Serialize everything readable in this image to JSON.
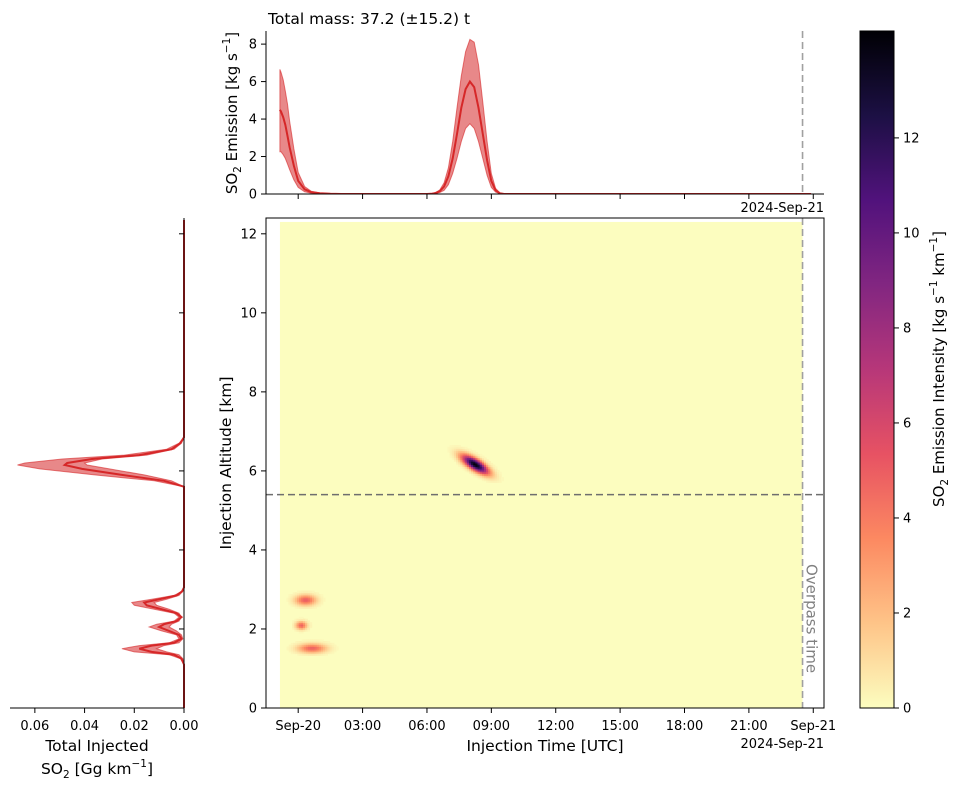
{
  "chart_data": [
    {
      "panel": "top",
      "type": "line",
      "title": "Total mass: 37.2 (±15.2) t",
      "ylabel": [
        "SO",
        "2",
        " Emission [kg s",
        "−1",
        "]"
      ],
      "ylim": [
        0,
        8.7
      ],
      "yticks": [
        0,
        2,
        4,
        6,
        8
      ],
      "x_date_label": "2024-Sep-21",
      "series": [
        {
          "band": true,
          "color": "#d62728",
          "x": [
            -0.85,
            -0.8,
            -0.7,
            -0.6,
            -0.5,
            -0.4,
            -0.2,
            0,
            0.3,
            0.6,
            1,
            1.5,
            2,
            4,
            6,
            6.2,
            6.4,
            6.6,
            6.8,
            7,
            7.2,
            7.4,
            7.6,
            7.8,
            8,
            8.2,
            8.4,
            8.6,
            8.8,
            9,
            9.2,
            9.4,
            9.6,
            10,
            12,
            16,
            20,
            23.9
          ],
          "lower": [
            2.25,
            2.25,
            2.1,
            1.9,
            1.6,
            1.3,
            0.75,
            0.35,
            0.12,
            0.05,
            0.02,
            0,
            0,
            0,
            0,
            0.01,
            0.03,
            0.08,
            0.2,
            0.5,
            1.1,
            1.9,
            2.8,
            3.5,
            3.75,
            3.5,
            2.8,
            1.9,
            1.0,
            0.35,
            0.1,
            0.02,
            0,
            0,
            0,
            0,
            0,
            0
          ],
          "mid": [
            4.5,
            4.4,
            4.1,
            3.7,
            3.1,
            2.5,
            1.5,
            0.7,
            0.25,
            0.1,
            0.04,
            0.01,
            0,
            0,
            0,
            0.01,
            0.05,
            0.15,
            0.4,
            0.95,
            1.9,
            3.2,
            4.6,
            5.6,
            6.0,
            5.7,
            4.6,
            3.2,
            1.8,
            0.7,
            0.2,
            0.04,
            0,
            0,
            0,
            0,
            0,
            0
          ],
          "upper": [
            6.65,
            6.5,
            6.1,
            5.5,
            4.8,
            3.9,
            2.4,
            1.15,
            0.4,
            0.15,
            0.06,
            0.02,
            0.01,
            0,
            0,
            0.02,
            0.08,
            0.22,
            0.6,
            1.4,
            2.8,
            4.6,
            6.3,
            7.6,
            8.25,
            8.1,
            6.9,
            4.9,
            2.8,
            1.1,
            0.3,
            0.06,
            0.01,
            0,
            0,
            0,
            0,
            0
          ]
        }
      ],
      "overpass_time_hours": 23.5
    },
    {
      "panel": "main",
      "type": "heatmap",
      "xlabel": "Injection Time [UTC]",
      "ylabel": "Injection Altitude [km]",
      "xlim": [
        -1.5,
        24.5
      ],
      "ylim": [
        0,
        12.4
      ],
      "xtick_labels": [
        "Sep-20",
        "03:00",
        "06:00",
        "09:00",
        "12:00",
        "15:00",
        "18:00",
        "21:00",
        "Sep-21"
      ],
      "xtick_hours": [
        0,
        3,
        6,
        9,
        12,
        15,
        18,
        21,
        24
      ],
      "x_date_label": "2024-Sep-21",
      "yticks": [
        0,
        2,
        4,
        6,
        8,
        10,
        12
      ],
      "data_extent": {
        "x": [
          -0.85,
          23.5
        ],
        "y": [
          0,
          12.3
        ]
      },
      "background_value": 0,
      "blobs": [
        {
          "x": 8.2,
          "y": 6.15,
          "sx": 0.42,
          "sy": 0.16,
          "rho": -0.75,
          "peak": 14.2
        },
        {
          "x": 0.3,
          "y": 2.72,
          "sx": 0.33,
          "sy": 0.09,
          "rho": 0,
          "peak": 5.0
        },
        {
          "x": 0.1,
          "y": 2.08,
          "sx": 0.18,
          "sy": 0.07,
          "rho": 0,
          "peak": 4.8
        },
        {
          "x": 0.6,
          "y": 1.5,
          "sx": 0.45,
          "sy": 0.08,
          "rho": 0,
          "peak": 4.8
        }
      ],
      "plume_altitude_km": 5.4,
      "overpass_time_hours": 23.5,
      "overpass_label": "Overpass time"
    },
    {
      "panel": "left",
      "type": "line",
      "xlabel_line1": "Total Injected",
      "xlabel_line2": [
        "SO",
        "2",
        " [Gg km",
        "−1",
        "]"
      ],
      "xlim": [
        0.0,
        0.07
      ],
      "xticks": [
        0.06,
        0.04,
        0.02,
        0.0
      ],
      "xtick_labels": [
        "0.06",
        "0.04",
        "0.02",
        "0.00"
      ],
      "series": [
        {
          "band": true,
          "color": "#d62728",
          "y": [
            0,
            1.1,
            1.25,
            1.35,
            1.42,
            1.5,
            1.58,
            1.65,
            1.75,
            1.85,
            1.95,
            2.05,
            2.12,
            2.2,
            2.3,
            2.4,
            2.5,
            2.6,
            2.67,
            2.75,
            2.85,
            2.95,
            3.05,
            5.6,
            5.75,
            5.9,
            6.05,
            6.15,
            6.2,
            6.3,
            6.4,
            6.55,
            6.7,
            6.85,
            7.0,
            12.35
          ],
          "lower": [
            0,
            0,
            0.0005,
            0.002,
            0.007,
            0.011,
            0.008,
            0.002,
            0.0005,
            0.001,
            0.003,
            0.006,
            0.005,
            0.002,
            0.001,
            0.002,
            0.006,
            0.011,
            0.012,
            0.007,
            0.002,
            0.0005,
            0,
            0,
            0.005,
            0.016,
            0.03,
            0.039,
            0.04,
            0.033,
            0.015,
            0.004,
            0.001,
            0,
            0,
            0
          ],
          "mid": [
            0,
            0,
            0.001,
            0.004,
            0.013,
            0.018,
            0.013,
            0.004,
            0.001,
            0.002,
            0.006,
            0.01,
            0.008,
            0.003,
            0.001,
            0.003,
            0.009,
            0.015,
            0.016,
            0.01,
            0.003,
            0.0008,
            0,
            0,
            0.008,
            0.025,
            0.041,
            0.048,
            0.047,
            0.037,
            0.018,
            0.005,
            0.0015,
            0,
            0,
            0
          ],
          "upper": [
            0,
            0,
            0.0015,
            0.006,
            0.02,
            0.025,
            0.018,
            0.006,
            0.002,
            0.003,
            0.009,
            0.014,
            0.011,
            0.004,
            0.002,
            0.004,
            0.012,
            0.02,
            0.021,
            0.013,
            0.004,
            0.001,
            0,
            0,
            0.012,
            0.036,
            0.058,
            0.067,
            0.064,
            0.049,
            0.024,
            0.007,
            0.002,
            0,
            0,
            0
          ]
        }
      ]
    },
    {
      "panel": "colorbar",
      "type": "colorbar",
      "label": [
        "SO",
        "2",
        " Emission Intensity [kg s",
        "−1",
        " km",
        "−1",
        "]"
      ],
      "range": [
        0,
        14.25
      ],
      "ticks": [
        0,
        2,
        4,
        6,
        8,
        10,
        12
      ],
      "colormap": "magma_r"
    }
  ]
}
